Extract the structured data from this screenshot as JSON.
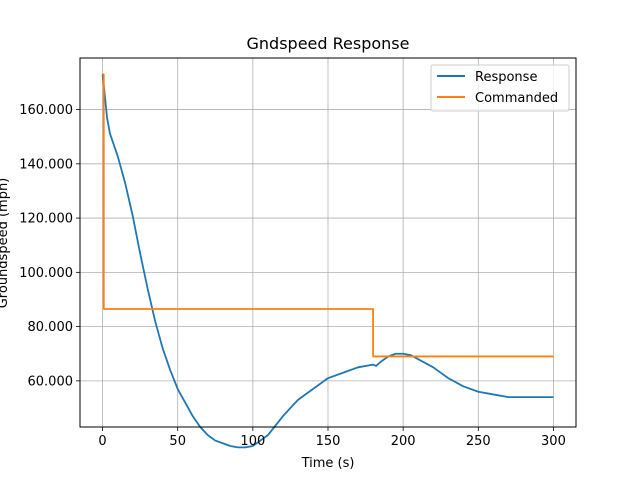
{
  "chart_data": {
    "type": "line",
    "title": "Gndspeed Response",
    "xlabel": "Time (s)",
    "ylabel": "Groundspeed (mph)",
    "xlim": [
      -15,
      315
    ],
    "ylim": [
      43,
      179
    ],
    "grid": true,
    "legend_position": "top-right",
    "x_ticks": [
      0,
      50,
      100,
      150,
      200,
      250,
      300
    ],
    "x_tick_labels": [
      "0",
      "50",
      "100",
      "150",
      "200",
      "250",
      "300"
    ],
    "y_ticks": [
      60,
      80,
      100,
      120,
      140,
      160
    ],
    "y_tick_labels": [
      "60.000",
      "80.000",
      "100.000",
      "120.000",
      "140.000",
      "160.000"
    ],
    "series": [
      {
        "name": "Response",
        "color": "#1f77b4",
        "x": [
          0,
          1,
          3,
          5,
          10,
          15,
          20,
          25,
          30,
          35,
          40,
          45,
          50,
          55,
          60,
          65,
          70,
          75,
          80,
          85,
          90,
          95,
          100,
          105,
          110,
          120,
          130,
          140,
          150,
          160,
          170,
          180,
          182,
          185,
          190,
          195,
          200,
          205,
          210,
          220,
          230,
          240,
          250,
          260,
          270,
          280,
          290,
          300
        ],
        "y": [
          173,
          168,
          157,
          151,
          143,
          133,
          121,
          107,
          94,
          82,
          72,
          64,
          57,
          52,
          47,
          43,
          40,
          38,
          37,
          36,
          35.5,
          35.5,
          36,
          38,
          40,
          47,
          53,
          57,
          61,
          63,
          65,
          66,
          65.5,
          67,
          69,
          70,
          70,
          69.5,
          68,
          65,
          61,
          58,
          56,
          55,
          54,
          54,
          54,
          54
        ]
      },
      {
        "name": "Commanded",
        "color": "#ff7f0e",
        "x": [
          0,
          0.8,
          0.8,
          180,
          180,
          300
        ],
        "y": [
          173,
          173,
          86.5,
          86.5,
          69,
          69
        ]
      }
    ]
  }
}
